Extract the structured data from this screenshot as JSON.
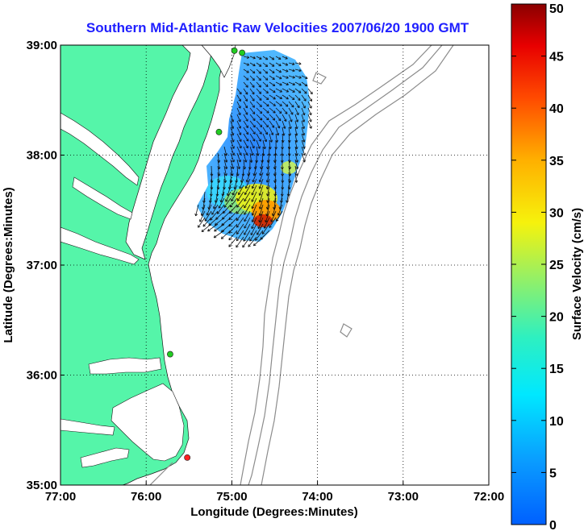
{
  "chart_data": {
    "type": "map",
    "title": "Southern Mid-Atlantic Raw Velocities 2007/06/20 1900 GMT",
    "xlabel": "Longitude (Degrees:Minutes)",
    "ylabel": "Latitude (Degrees:Minutes)",
    "x_ticks": [
      "77:00",
      "76:00",
      "75:00",
      "74:00",
      "73:00",
      "72:00"
    ],
    "y_ticks": [
      "39:00",
      "38:00",
      "37:00",
      "36:00",
      "35:00"
    ],
    "xlim": [
      -77,
      -72
    ],
    "ylim": [
      35,
      39
    ],
    "grid": "dotted",
    "colorbar": {
      "label": "Surface Velocity (cm/s)",
      "ticks": [
        "50",
        "45",
        "40",
        "35",
        "30",
        "25",
        "20",
        "15",
        "10",
        "5",
        "0"
      ],
      "range": [
        0,
        50
      ],
      "colormap": "jet"
    },
    "colors": {
      "land": "#55f5a9",
      "title": "#1f1fff",
      "bathymetry": "#8c8c8c"
    },
    "stations": [
      {
        "lon": -74.88,
        "lat": 38.93,
        "color": "#22cc22"
      },
      {
        "lon": -74.97,
        "lat": 38.95,
        "color": "#22cc22"
      },
      {
        "lon": -75.15,
        "lat": 38.21,
        "color": "#22cc22"
      },
      {
        "lon": -75.72,
        "lat": 36.19,
        "color": "#22cc22"
      },
      {
        "lon": -75.52,
        "lat": 35.25,
        "color": "#ff2020"
      }
    ]
  }
}
